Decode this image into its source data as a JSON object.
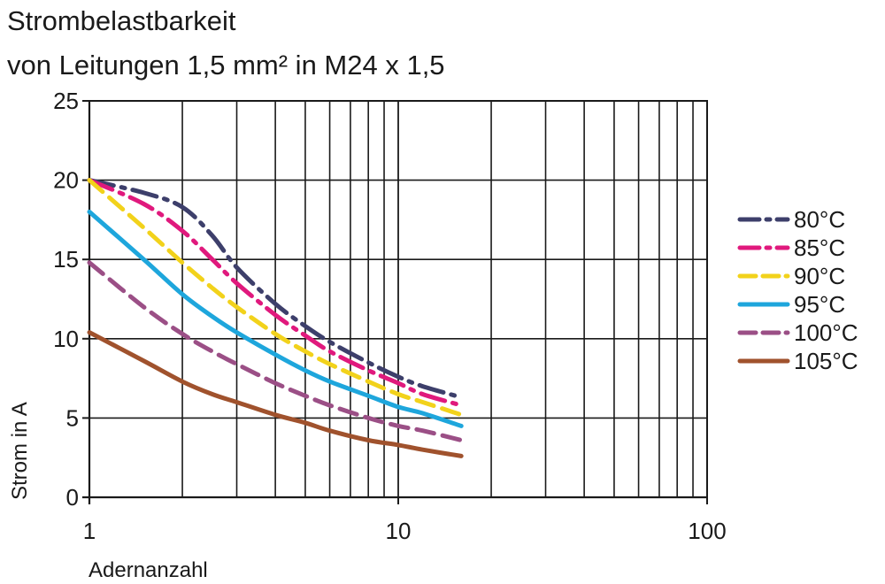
{
  "chart_data": {
    "type": "line",
    "title": "Strombelastbarkeit",
    "subtitle": "von Leitungen 1,5 mm² in M24 x 1,5",
    "xlabel": "Adernanzahl",
    "ylabel": "Strom in A",
    "x_scale": "log",
    "xlim": [
      1,
      100
    ],
    "ylim": [
      0,
      25
    ],
    "x_ticks": [
      "1",
      "10",
      "100"
    ],
    "y_ticks": [
      "0",
      "5",
      "10",
      "15",
      "20",
      "25"
    ],
    "grid": true,
    "legend_position": "right",
    "series": [
      {
        "name": "80°C",
        "color": "#3d3f6b",
        "dash": "dash-dot",
        "x": [
          1,
          1.5,
          2,
          2.5,
          3,
          4,
          5,
          6,
          8,
          10,
          12,
          16
        ],
        "y": [
          20.0,
          19.2,
          18.3,
          16.5,
          14.5,
          12.2,
          10.8,
          9.8,
          8.5,
          7.6,
          7.0,
          6.3
        ]
      },
      {
        "name": "85°C",
        "color": "#e0197d",
        "dash": "dash-dot",
        "x": [
          1,
          1.5,
          2,
          2.5,
          3,
          4,
          5,
          6,
          8,
          10,
          12,
          16
        ],
        "y": [
          20.0,
          18.5,
          16.8,
          15.0,
          13.5,
          11.5,
          10.2,
          9.2,
          8.0,
          7.2,
          6.5,
          5.8
        ]
      },
      {
        "name": "90°C",
        "color": "#f2d21b",
        "dash": "dash",
        "x": [
          1,
          1.5,
          2,
          2.5,
          3,
          4,
          5,
          6,
          8,
          10,
          12,
          16
        ],
        "y": [
          20.0,
          17.0,
          14.8,
          13.2,
          12.0,
          10.3,
          9.2,
          8.4,
          7.3,
          6.5,
          6.0,
          5.2
        ]
      },
      {
        "name": "95°C",
        "color": "#1ea6dc",
        "dash": "solid",
        "x": [
          1,
          1.5,
          2,
          2.5,
          3,
          4,
          5,
          6,
          8,
          10,
          12,
          16
        ],
        "y": [
          18.0,
          15.0,
          12.8,
          11.4,
          10.4,
          9.0,
          8.0,
          7.3,
          6.4,
          5.7,
          5.3,
          4.5
        ]
      },
      {
        "name": "100°C",
        "color": "#9b4f86",
        "dash": "dash",
        "x": [
          1,
          1.5,
          2,
          2.5,
          3,
          4,
          5,
          6,
          8,
          10,
          12,
          16
        ],
        "y": [
          14.8,
          12.0,
          10.3,
          9.2,
          8.4,
          7.2,
          6.4,
          5.8,
          5.0,
          4.5,
          4.2,
          3.6
        ]
      },
      {
        "name": "105°C",
        "color": "#a0522d",
        "dash": "solid",
        "x": [
          1,
          1.5,
          2,
          2.5,
          3,
          4,
          5,
          6,
          8,
          10,
          12,
          16
        ],
        "y": [
          10.4,
          8.6,
          7.3,
          6.5,
          6.0,
          5.2,
          4.7,
          4.2,
          3.6,
          3.3,
          3.0,
          2.6
        ]
      }
    ]
  }
}
